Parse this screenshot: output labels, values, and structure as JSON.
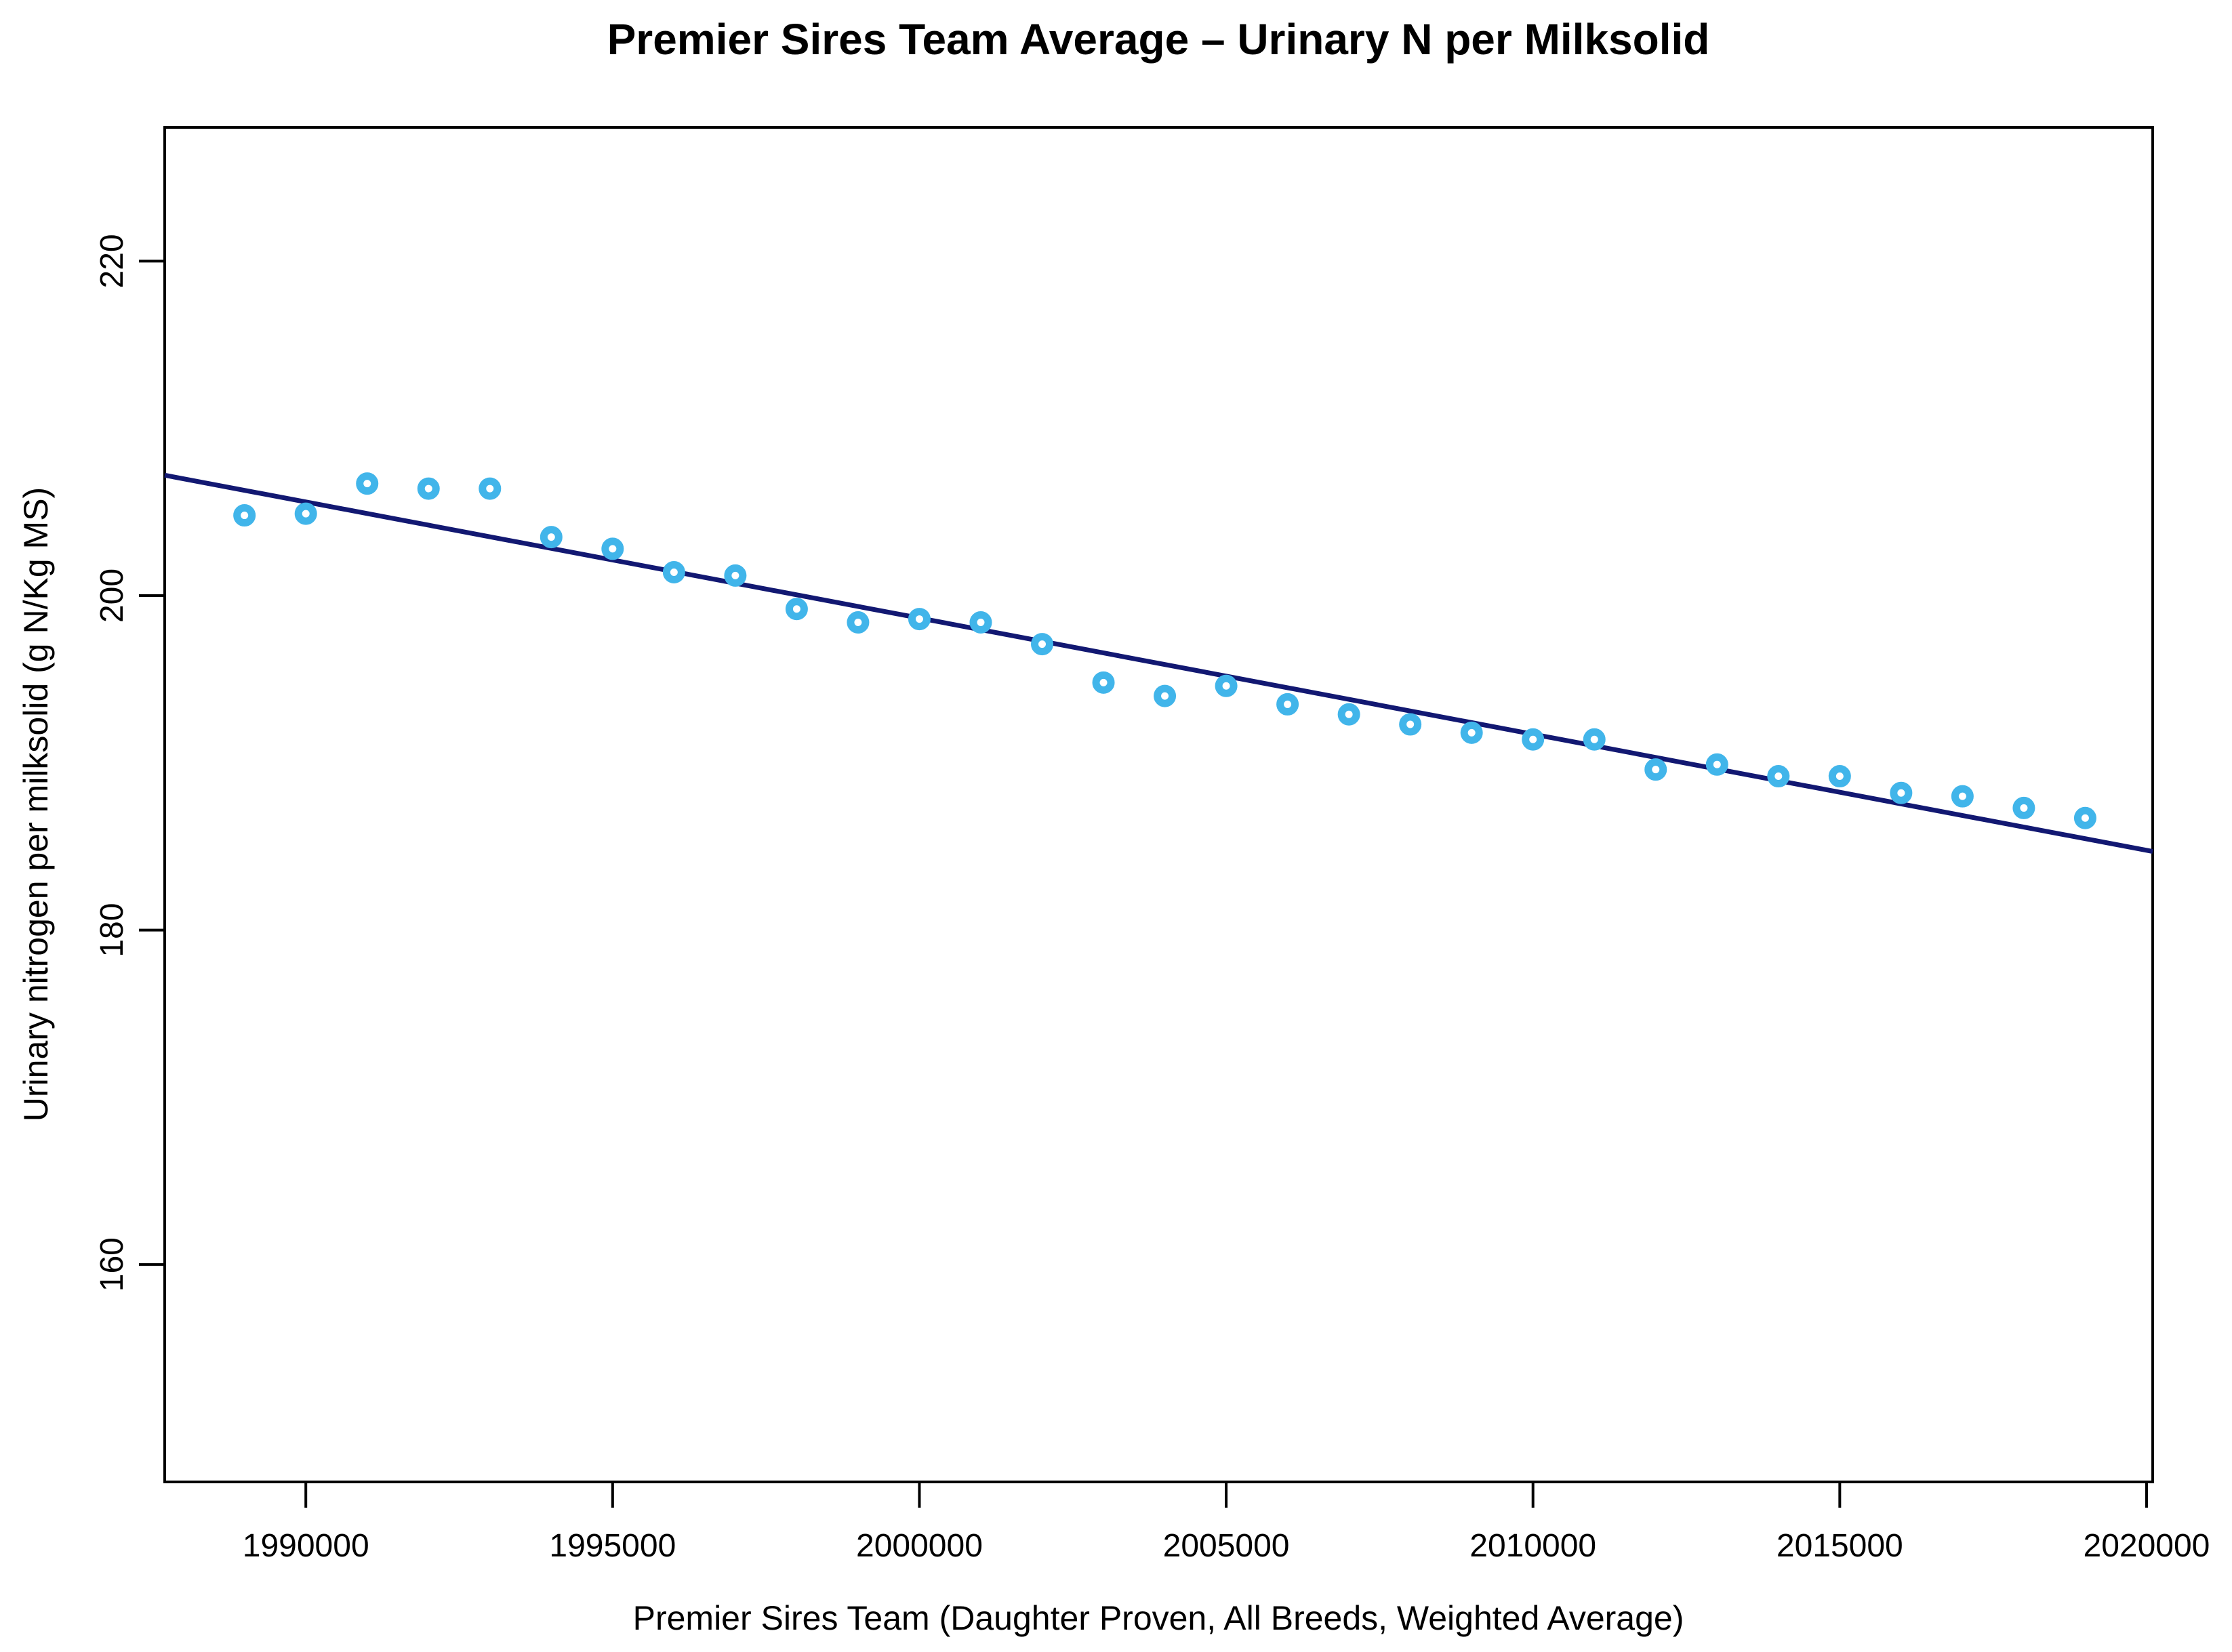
{
  "title": {
    "text": "Premier Sires Team Average – Urinary N per Milksolid",
    "color": "#3eb7f2"
  },
  "chart_data": {
    "type": "scatter",
    "title": "Premier Sires Team Average – Urinary N per Milksolid",
    "title_color": "#3eb7f2",
    "xlabel": "Premier Sires Team (Daughter Proven, All Breeds, Weighted Average)",
    "ylabel": "Urinary nitrogen per milksolid (g N/Kg MS)",
    "x": [
      1989000,
      1990000,
      1991000,
      1992000,
      1993000,
      1994000,
      1995000,
      1996000,
      1997000,
      1998000,
      1999000,
      2000000,
      2001000,
      2002000,
      2003000,
      2004000,
      2005000,
      2006000,
      2007000,
      2008000,
      2009000,
      2010000,
      2011000,
      2012000,
      2013000,
      2014000,
      2015000,
      2016000,
      2017000,
      2018000,
      2019000
    ],
    "y": [
      204.8,
      204.9,
      206.7,
      206.4,
      206.4,
      203.5,
      202.8,
      201.4,
      201.2,
      199.2,
      198.4,
      198.6,
      198.4,
      197.1,
      194.8,
      194.0,
      194.6,
      193.5,
      192.9,
      192.3,
      191.8,
      191.4,
      191.4,
      189.6,
      189.9,
      189.2,
      189.2,
      188.2,
      188.0,
      187.3,
      186.7
    ],
    "point_color": "#41b5ea",
    "point_style": "open-circle",
    "trend_line": {
      "x": [
        1987700,
        2020100
      ],
      "y": [
        207.2,
        184.7
      ],
      "color": "#121872"
    },
    "x_ticks": [
      "1990000",
      "1995000",
      "2000000",
      "2005000",
      "2010000",
      "2015000",
      "2020000"
    ],
    "x_tick_values": [
      1990000,
      1995000,
      2000000,
      2005000,
      2010000,
      2015000,
      2020000
    ],
    "y_ticks": [
      "160",
      "180",
      "200",
      "220"
    ],
    "y_tick_values": [
      160,
      180,
      200,
      220
    ],
    "xlim": [
      1987700,
      2020100
    ],
    "ylim": [
      147,
      228
    ],
    "grid": false,
    "legend_position": "none",
    "axis_color": "#000000"
  }
}
